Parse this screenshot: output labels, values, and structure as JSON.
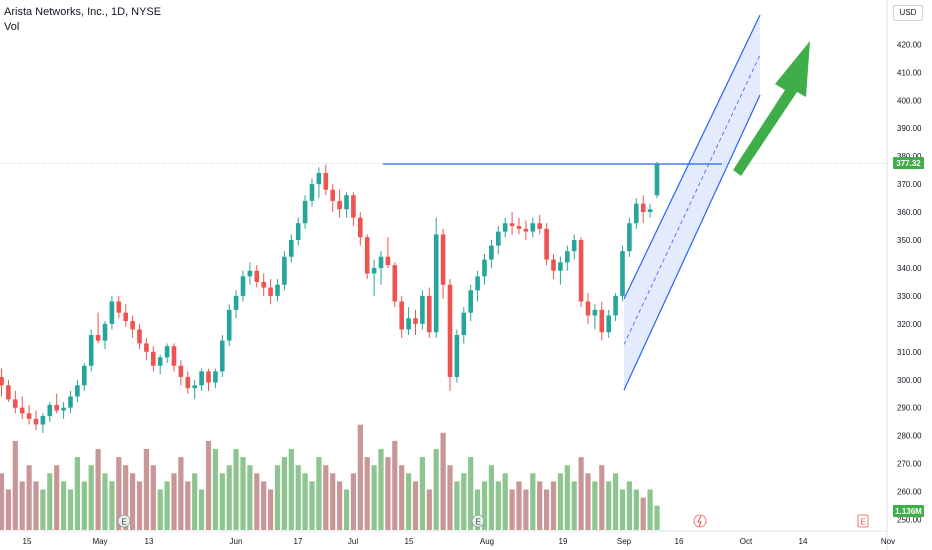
{
  "header": {
    "title": "Arista Networks, Inc., 1D, NYSE",
    "volume_label": "Vol"
  },
  "currency": "USD",
  "colors": {
    "up": "#26a69a",
    "down": "#ef5350",
    "volume_up": "#8dc58e",
    "volume_down": "#c99697",
    "channel_line": "#2962ff",
    "channel_fill": "#dbe4fb",
    "arrow": "#3fae49",
    "price_line": "#3fae49"
  },
  "chart_data": {
    "type": "candlestick",
    "title": "Arista Networks, Inc., 1D, NYSE",
    "y_axis": {
      "ticks": [
        250,
        260,
        270,
        280,
        290,
        300,
        310,
        320,
        330,
        340,
        350,
        360,
        370,
        380,
        390,
        400,
        410,
        420
      ],
      "range": [
        248,
        430
      ],
      "side": "right"
    },
    "x_axis": {
      "tick_labels": [
        "15",
        "May",
        "13",
        "Jun",
        "17",
        "Jul",
        "15",
        "Aug",
        "19",
        "Sep",
        "16",
        "Oct",
        "14",
        "Nov"
      ]
    },
    "last_price": "377.32",
    "last_volume": "1.136M",
    "grid": false,
    "volume_scale_max": 12,
    "volume_note": "relative volume, no printed scale",
    "candles": [
      [
        301,
        304,
        294,
        298
      ],
      [
        298,
        300,
        292,
        293
      ],
      [
        293,
        296,
        288,
        290
      ],
      [
        290,
        294,
        286,
        288
      ],
      [
        288,
        291,
        284,
        286
      ],
      [
        286,
        289,
        282,
        284
      ],
      [
        284,
        288,
        281,
        287
      ],
      [
        287,
        292,
        285,
        291
      ],
      [
        291,
        295,
        288,
        289
      ],
      [
        289,
        292,
        286,
        290
      ],
      [
        290,
        296,
        288,
        294
      ],
      [
        294,
        300,
        292,
        298
      ],
      [
        298,
        306,
        296,
        305
      ],
      [
        305,
        318,
        303,
        316
      ],
      [
        316,
        324,
        313,
        314
      ],
      [
        314,
        321,
        311,
        320
      ],
      [
        320,
        330,
        318,
        328
      ],
      [
        328,
        330,
        322,
        324
      ],
      [
        324,
        327,
        319,
        321
      ],
      [
        321,
        323,
        315,
        318
      ],
      [
        318,
        320,
        311,
        313
      ],
      [
        313,
        315,
        307,
        310
      ],
      [
        310,
        312,
        303,
        305
      ],
      [
        305,
        309,
        302,
        308
      ],
      [
        308,
        313,
        306,
        312
      ],
      [
        312,
        313,
        303,
        305
      ],
      [
        305,
        307,
        298,
        301
      ],
      [
        301,
        303,
        295,
        297
      ],
      [
        297,
        300,
        293,
        298
      ],
      [
        298,
        304,
        296,
        303
      ],
      [
        303,
        304,
        296,
        299
      ],
      [
        299,
        304,
        297,
        303
      ],
      [
        303,
        316,
        301,
        314
      ],
      [
        314,
        327,
        312,
        325
      ],
      [
        325,
        332,
        322,
        330
      ],
      [
        330,
        339,
        328,
        337
      ],
      [
        337,
        342,
        334,
        339
      ],
      [
        339,
        341,
        333,
        335
      ],
      [
        335,
        338,
        330,
        333
      ],
      [
        333,
        336,
        327,
        330
      ],
      [
        330,
        336,
        328,
        334
      ],
      [
        334,
        346,
        332,
        344
      ],
      [
        344,
        352,
        342,
        350
      ],
      [
        350,
        358,
        348,
        356
      ],
      [
        356,
        366,
        354,
        364
      ],
      [
        364,
        372,
        362,
        370
      ],
      [
        370,
        376,
        365,
        374
      ],
      [
        374,
        377,
        366,
        368
      ],
      [
        368,
        370,
        360,
        364
      ],
      [
        364,
        368,
        358,
        361
      ],
      [
        361,
        367,
        358,
        366
      ],
      [
        366,
        367,
        355,
        358
      ],
      [
        358,
        360,
        348,
        351
      ],
      [
        351,
        352,
        336,
        338
      ],
      [
        338,
        343,
        330,
        340
      ],
      [
        340,
        346,
        334,
        344
      ],
      [
        344,
        351,
        340,
        341
      ],
      [
        341,
        342,
        326,
        328
      ],
      [
        328,
        330,
        315,
        318
      ],
      [
        318,
        326,
        316,
        322
      ],
      [
        322,
        325,
        316,
        320
      ],
      [
        320,
        332,
        318,
        330
      ],
      [
        330,
        333,
        315,
        317
      ],
      [
        317,
        358,
        315,
        352
      ],
      [
        352,
        354,
        329,
        334
      ],
      [
        334,
        336,
        296,
        301
      ],
      [
        301,
        318,
        299,
        316
      ],
      [
        316,
        326,
        313,
        324
      ],
      [
        324,
        334,
        321,
        332
      ],
      [
        332,
        339,
        328,
        337
      ],
      [
        337,
        345,
        334,
        343
      ],
      [
        343,
        350,
        340,
        348
      ],
      [
        348,
        355,
        345,
        353
      ],
      [
        353,
        358,
        351,
        356
      ],
      [
        356,
        360,
        352,
        355
      ],
      [
        355,
        358,
        352,
        354
      ],
      [
        354,
        357,
        350,
        353
      ],
      [
        353,
        358,
        351,
        356
      ],
      [
        356,
        359,
        352,
        354
      ],
      [
        354,
        356,
        341,
        343
      ],
      [
        343,
        345,
        336,
        339
      ],
      [
        339,
        344,
        334,
        342
      ],
      [
        342,
        348,
        339,
        346
      ],
      [
        346,
        352,
        343,
        350
      ],
      [
        350,
        351,
        326,
        328
      ],
      [
        328,
        331,
        320,
        323
      ],
      [
        323,
        327,
        318,
        325
      ],
      [
        325,
        328,
        314,
        317
      ],
      [
        317,
        325,
        315,
        323
      ],
      [
        323,
        331,
        321,
        330
      ],
      [
        330,
        348,
        328,
        346
      ],
      [
        346,
        358,
        344,
        356
      ],
      [
        356,
        365,
        354,
        363
      ],
      [
        363,
        366,
        356,
        360
      ],
      [
        360,
        363,
        358,
        361
      ],
      [
        366,
        378,
        365,
        377
      ]
    ],
    "volumes": [
      7,
      5,
      11,
      6,
      8,
      6,
      5,
      7,
      8,
      6,
      5,
      9,
      6,
      8,
      10,
      7,
      6,
      9,
      8,
      7,
      6,
      10,
      8,
      5,
      6,
      7,
      9,
      6,
      7,
      5,
      11,
      10,
      7,
      8,
      10,
      9,
      8,
      7,
      6,
      5,
      8,
      9,
      10,
      8,
      7,
      6,
      9,
      8,
      7,
      6,
      5,
      7,
      13,
      9,
      8,
      10,
      9,
      11,
      8,
      7,
      6,
      9,
      5,
      10,
      12,
      8,
      6,
      7,
      9,
      5,
      6,
      8,
      6,
      7,
      5,
      6,
      5,
      7,
      6,
      5,
      6,
      7,
      8,
      6,
      9,
      7,
      6,
      8,
      6,
      7,
      5,
      6,
      5,
      4,
      5,
      3
    ],
    "annotations": [
      {
        "type": "horizontal-segment",
        "price": 377.3
      },
      {
        "type": "parallel-channel",
        "direction": "up"
      },
      {
        "type": "arrow",
        "direction": "up"
      }
    ],
    "event_markers": [
      "E",
      "E",
      "E"
    ]
  }
}
